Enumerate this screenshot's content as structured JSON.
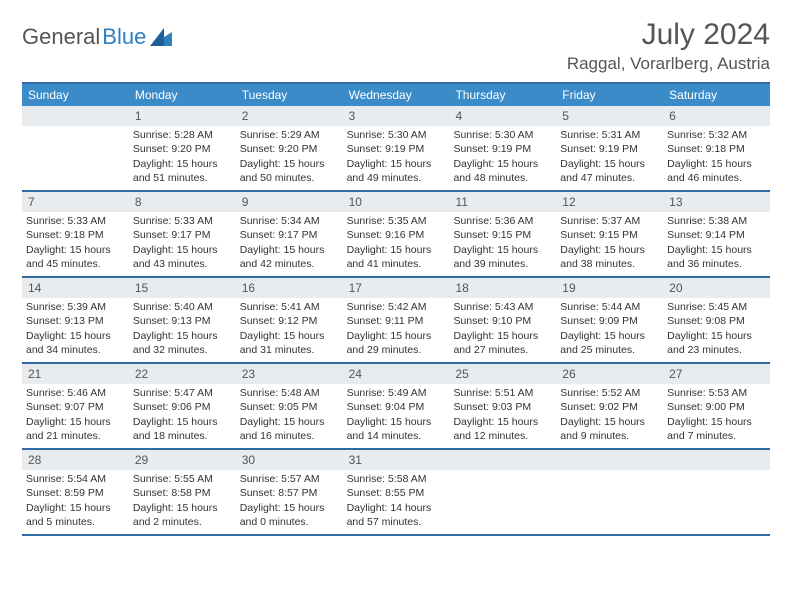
{
  "brand": {
    "part1": "General",
    "part2": "Blue"
  },
  "title": "July 2024",
  "location": "Raggal, Vorarlberg, Austria",
  "colors": {
    "header_bg": "#3b8bc9",
    "border": "#2f6ba3",
    "daynum_bg": "#e8ecef",
    "text": "#333333",
    "title": "#555555"
  },
  "weekdays": [
    "Sunday",
    "Monday",
    "Tuesday",
    "Wednesday",
    "Thursday",
    "Friday",
    "Saturday"
  ],
  "weeks": [
    [
      {
        "n": "",
        "sr": "",
        "ss": "",
        "dl": ""
      },
      {
        "n": "1",
        "sr": "Sunrise: 5:28 AM",
        "ss": "Sunset: 9:20 PM",
        "dl": "Daylight: 15 hours and 51 minutes."
      },
      {
        "n": "2",
        "sr": "Sunrise: 5:29 AM",
        "ss": "Sunset: 9:20 PM",
        "dl": "Daylight: 15 hours and 50 minutes."
      },
      {
        "n": "3",
        "sr": "Sunrise: 5:30 AM",
        "ss": "Sunset: 9:19 PM",
        "dl": "Daylight: 15 hours and 49 minutes."
      },
      {
        "n": "4",
        "sr": "Sunrise: 5:30 AM",
        "ss": "Sunset: 9:19 PM",
        "dl": "Daylight: 15 hours and 48 minutes."
      },
      {
        "n": "5",
        "sr": "Sunrise: 5:31 AM",
        "ss": "Sunset: 9:19 PM",
        "dl": "Daylight: 15 hours and 47 minutes."
      },
      {
        "n": "6",
        "sr": "Sunrise: 5:32 AM",
        "ss": "Sunset: 9:18 PM",
        "dl": "Daylight: 15 hours and 46 minutes."
      }
    ],
    [
      {
        "n": "7",
        "sr": "Sunrise: 5:33 AM",
        "ss": "Sunset: 9:18 PM",
        "dl": "Daylight: 15 hours and 45 minutes."
      },
      {
        "n": "8",
        "sr": "Sunrise: 5:33 AM",
        "ss": "Sunset: 9:17 PM",
        "dl": "Daylight: 15 hours and 43 minutes."
      },
      {
        "n": "9",
        "sr": "Sunrise: 5:34 AM",
        "ss": "Sunset: 9:17 PM",
        "dl": "Daylight: 15 hours and 42 minutes."
      },
      {
        "n": "10",
        "sr": "Sunrise: 5:35 AM",
        "ss": "Sunset: 9:16 PM",
        "dl": "Daylight: 15 hours and 41 minutes."
      },
      {
        "n": "11",
        "sr": "Sunrise: 5:36 AM",
        "ss": "Sunset: 9:15 PM",
        "dl": "Daylight: 15 hours and 39 minutes."
      },
      {
        "n": "12",
        "sr": "Sunrise: 5:37 AM",
        "ss": "Sunset: 9:15 PM",
        "dl": "Daylight: 15 hours and 38 minutes."
      },
      {
        "n": "13",
        "sr": "Sunrise: 5:38 AM",
        "ss": "Sunset: 9:14 PM",
        "dl": "Daylight: 15 hours and 36 minutes."
      }
    ],
    [
      {
        "n": "14",
        "sr": "Sunrise: 5:39 AM",
        "ss": "Sunset: 9:13 PM",
        "dl": "Daylight: 15 hours and 34 minutes."
      },
      {
        "n": "15",
        "sr": "Sunrise: 5:40 AM",
        "ss": "Sunset: 9:13 PM",
        "dl": "Daylight: 15 hours and 32 minutes."
      },
      {
        "n": "16",
        "sr": "Sunrise: 5:41 AM",
        "ss": "Sunset: 9:12 PM",
        "dl": "Daylight: 15 hours and 31 minutes."
      },
      {
        "n": "17",
        "sr": "Sunrise: 5:42 AM",
        "ss": "Sunset: 9:11 PM",
        "dl": "Daylight: 15 hours and 29 minutes."
      },
      {
        "n": "18",
        "sr": "Sunrise: 5:43 AM",
        "ss": "Sunset: 9:10 PM",
        "dl": "Daylight: 15 hours and 27 minutes."
      },
      {
        "n": "19",
        "sr": "Sunrise: 5:44 AM",
        "ss": "Sunset: 9:09 PM",
        "dl": "Daylight: 15 hours and 25 minutes."
      },
      {
        "n": "20",
        "sr": "Sunrise: 5:45 AM",
        "ss": "Sunset: 9:08 PM",
        "dl": "Daylight: 15 hours and 23 minutes."
      }
    ],
    [
      {
        "n": "21",
        "sr": "Sunrise: 5:46 AM",
        "ss": "Sunset: 9:07 PM",
        "dl": "Daylight: 15 hours and 21 minutes."
      },
      {
        "n": "22",
        "sr": "Sunrise: 5:47 AM",
        "ss": "Sunset: 9:06 PM",
        "dl": "Daylight: 15 hours and 18 minutes."
      },
      {
        "n": "23",
        "sr": "Sunrise: 5:48 AM",
        "ss": "Sunset: 9:05 PM",
        "dl": "Daylight: 15 hours and 16 minutes."
      },
      {
        "n": "24",
        "sr": "Sunrise: 5:49 AM",
        "ss": "Sunset: 9:04 PM",
        "dl": "Daylight: 15 hours and 14 minutes."
      },
      {
        "n": "25",
        "sr": "Sunrise: 5:51 AM",
        "ss": "Sunset: 9:03 PM",
        "dl": "Daylight: 15 hours and 12 minutes."
      },
      {
        "n": "26",
        "sr": "Sunrise: 5:52 AM",
        "ss": "Sunset: 9:02 PM",
        "dl": "Daylight: 15 hours and 9 minutes."
      },
      {
        "n": "27",
        "sr": "Sunrise: 5:53 AM",
        "ss": "Sunset: 9:00 PM",
        "dl": "Daylight: 15 hours and 7 minutes."
      }
    ],
    [
      {
        "n": "28",
        "sr": "Sunrise: 5:54 AM",
        "ss": "Sunset: 8:59 PM",
        "dl": "Daylight: 15 hours and 5 minutes."
      },
      {
        "n": "29",
        "sr": "Sunrise: 5:55 AM",
        "ss": "Sunset: 8:58 PM",
        "dl": "Daylight: 15 hours and 2 minutes."
      },
      {
        "n": "30",
        "sr": "Sunrise: 5:57 AM",
        "ss": "Sunset: 8:57 PM",
        "dl": "Daylight: 15 hours and 0 minutes."
      },
      {
        "n": "31",
        "sr": "Sunrise: 5:58 AM",
        "ss": "Sunset: 8:55 PM",
        "dl": "Daylight: 14 hours and 57 minutes."
      },
      {
        "n": "",
        "sr": "",
        "ss": "",
        "dl": ""
      },
      {
        "n": "",
        "sr": "",
        "ss": "",
        "dl": ""
      },
      {
        "n": "",
        "sr": "",
        "ss": "",
        "dl": ""
      }
    ]
  ]
}
